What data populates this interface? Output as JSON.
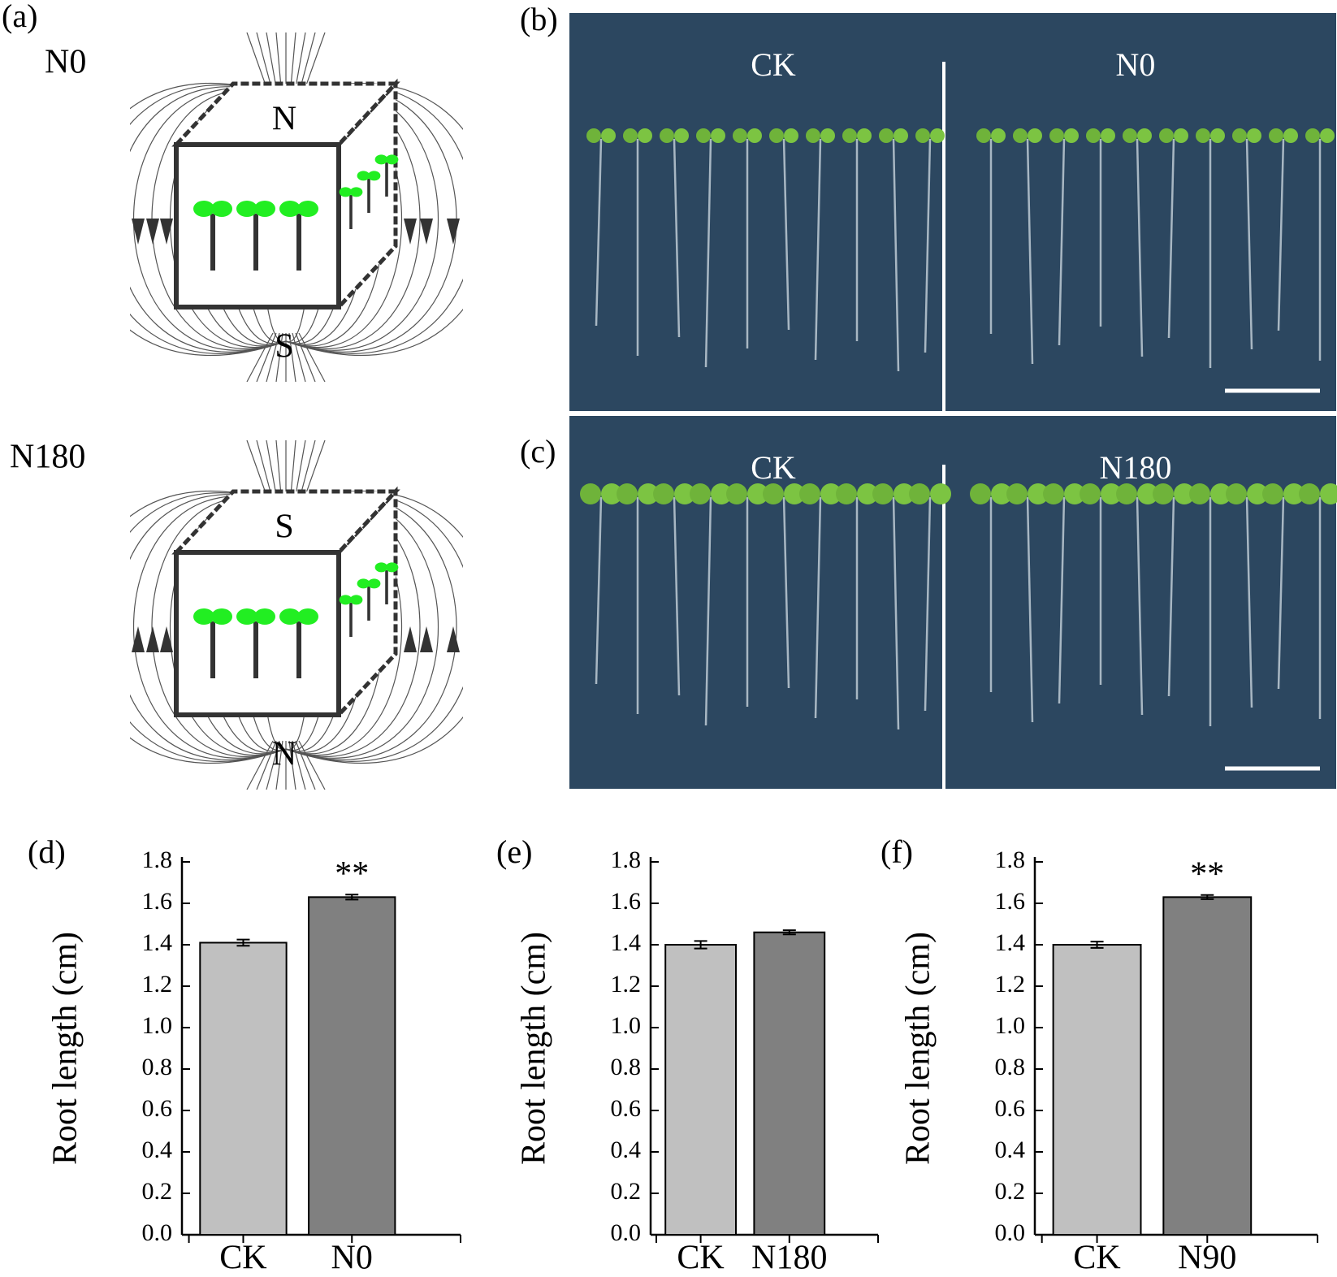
{
  "figure": {
    "a": {
      "label": "(a)",
      "top_label": "N0",
      "top_poles": [
        "N",
        "S"
      ],
      "bottom_label": "N180",
      "bottom_poles": [
        "S",
        "N"
      ]
    },
    "b": {
      "label": "(b)",
      "left": "CK",
      "right": "N0"
    },
    "c": {
      "label": "(c)",
      "left": "CK",
      "right": "N180"
    }
  },
  "chart_data": [
    {
      "type": "bar",
      "panel_label": "(d)",
      "ylabel": "Root length (cm)",
      "categories": [
        "CK",
        "N0"
      ],
      "values": [
        1.41,
        1.63
      ],
      "errors": [
        0.015,
        0.012
      ],
      "colors": [
        "#c0c0c0",
        "#808080"
      ],
      "significance": [
        null,
        "**"
      ],
      "ylim": [
        0,
        1.8
      ],
      "yticks": [
        {
          "value": 0,
          "label": "0.0"
        },
        0.2,
        0.4,
        0.6,
        0.8,
        {
          "value": 1,
          "label": "1.0"
        },
        1.2,
        1.4,
        1.6,
        1.8
      ]
    },
    {
      "type": "bar",
      "panel_label": "(e)",
      "ylabel": "Root length (cm)",
      "categories": [
        "CK",
        "N180"
      ],
      "values": [
        1.4,
        1.46
      ],
      "errors": [
        0.018,
        0.01
      ],
      "colors": [
        "#c0c0c0",
        "#808080"
      ],
      "ylim": [
        0,
        1.8
      ],
      "yticks": [
        {
          "value": 0,
          "label": "0.0"
        },
        0.2,
        0.4,
        0.6,
        0.8,
        {
          "value": 1,
          "label": "1.0"
        },
        1.2,
        1.4,
        1.6,
        1.8
      ]
    },
    {
      "type": "bar",
      "panel_label": "(f)",
      "ylabel": "Root length (cm)",
      "categories": [
        "CK",
        "N90"
      ],
      "values": [
        1.4,
        1.63
      ],
      "errors": [
        0.015,
        0.01
      ],
      "colors": [
        "#c0c0c0",
        "#808080"
      ],
      "significance": [
        null,
        "**"
      ],
      "ylim": [
        0,
        1.8
      ],
      "yticks": [
        {
          "value": 0,
          "label": "0.0"
        },
        0.2,
        0.4,
        0.6,
        0.8,
        {
          "value": 1,
          "label": "1.0"
        },
        1.2,
        1.4,
        1.6,
        1.8
      ]
    }
  ]
}
